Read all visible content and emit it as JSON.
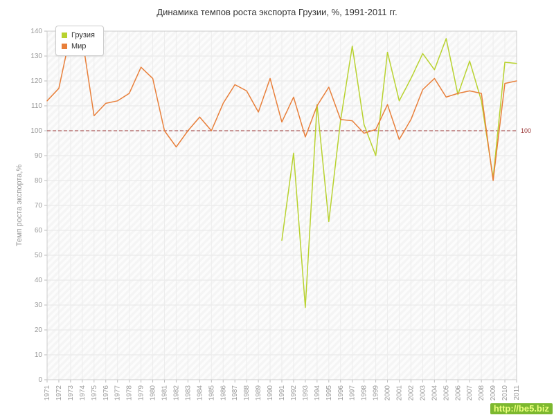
{
  "chart_data": {
    "type": "line",
    "title": "Динамика темпов роста экспорта Грузии, %, 1991-2011 гг.",
    "ylabel": "Темп роста экспорта,%",
    "xlabel": "",
    "ylim": [
      0,
      140
    ],
    "ytick_step": 10,
    "grid": true,
    "legend_position": "top-left",
    "guide_line": {
      "value": 100,
      "label": "100",
      "color": "#993333",
      "style": "dashed"
    },
    "x": [
      1971,
      1972,
      1973,
      1974,
      1975,
      1976,
      1977,
      1978,
      1979,
      1980,
      1981,
      1982,
      1983,
      1984,
      1985,
      1986,
      1987,
      1988,
      1989,
      1990,
      1991,
      1992,
      1993,
      1994,
      1995,
      1996,
      1997,
      1998,
      1999,
      2000,
      2001,
      2002,
      2003,
      2004,
      2005,
      2006,
      2007,
      2008,
      2009,
      2010,
      2011
    ],
    "series": [
      {
        "name": "Грузия",
        "color": "#b8d22f",
        "values": [
          null,
          null,
          null,
          null,
          null,
          null,
          null,
          null,
          null,
          null,
          null,
          null,
          null,
          null,
          null,
          null,
          null,
          null,
          null,
          null,
          56,
          91,
          29,
          110.5,
          63.5,
          104,
          134,
          102.5,
          90,
          131.5,
          112,
          121,
          131,
          124.5,
          137,
          114.5,
          128,
          112,
          81,
          127.5,
          127
        ]
      },
      {
        "name": "Мир",
        "color": "#e87f3a",
        "values": [
          112,
          117,
          139,
          137,
          106,
          111,
          112,
          115,
          125.5,
          121,
          100,
          93.5,
          100,
          105.5,
          100,
          111,
          118.5,
          116,
          107.5,
          121,
          103.5,
          113.5,
          97.5,
          110,
          117.5,
          104.5,
          104,
          99,
          100.5,
          110.5,
          96.5,
          104.5,
          116.5,
          121,
          113.5,
          115,
          116,
          115,
          80,
          119,
          120
        ]
      }
    ]
  },
  "watermark": {
    "text": "http://be5.biz"
  }
}
